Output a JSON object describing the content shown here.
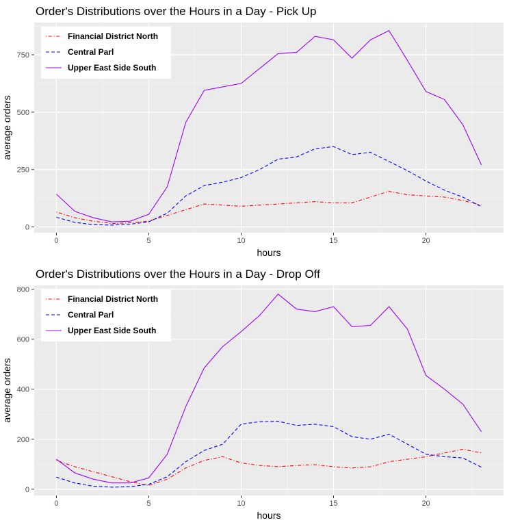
{
  "chart_data": [
    {
      "type": "line",
      "title": "Order's Distributions over the Hours in a Day - Pick Up",
      "xlabel": "hours",
      "ylabel": "average orders",
      "xlim": [
        -1.2,
        24.2
      ],
      "ylim": [
        -25,
        890
      ],
      "x_ticks": [
        0,
        5,
        10,
        15,
        20
      ],
      "y_ticks": [
        0,
        250,
        500,
        750
      ],
      "grid": true,
      "legend_position": "top-left",
      "x": [
        0,
        1,
        2,
        3,
        4,
        5,
        6,
        7,
        8,
        9,
        10,
        11,
        12,
        13,
        14,
        15,
        16,
        17,
        18,
        19,
        20,
        21,
        22,
        23
      ],
      "series": [
        {
          "name": "Financial District North",
          "color": "#ff0000",
          "dash": "dotdash",
          "values": [
            65,
            40,
            25,
            15,
            18,
            25,
            50,
            75,
            100,
            95,
            90,
            95,
            100,
            105,
            110,
            105,
            105,
            130,
            155,
            140,
            135,
            130,
            115,
            95
          ]
        },
        {
          "name": "Central Parl",
          "color": "#0000ff",
          "dash": "dashed",
          "values": [
            42,
            20,
            10,
            8,
            12,
            22,
            60,
            135,
            180,
            195,
            215,
            250,
            295,
            305,
            340,
            350,
            315,
            325,
            285,
            245,
            200,
            160,
            130,
            88
          ]
        },
        {
          "name": "Upper East Side South",
          "color": "#9b00ff",
          "dash": "solid",
          "values": [
            143,
            68,
            40,
            22,
            25,
            55,
            175,
            455,
            595,
            610,
            625,
            690,
            755,
            760,
            830,
            815,
            735,
            815,
            855,
            725,
            590,
            555,
            445,
            270
          ]
        }
      ]
    },
    {
      "type": "line",
      "title": "Order's Distributions over the Hours in a Day - Drop Off",
      "xlabel": "hours",
      "ylabel": "average orders",
      "xlim": [
        -1.2,
        24.2
      ],
      "ylim": [
        -25,
        815
      ],
      "x_ticks": [
        0,
        5,
        10,
        15,
        20
      ],
      "y_ticks": [
        0,
        200,
        400,
        600,
        800
      ],
      "grid": true,
      "legend_position": "top-left",
      "x": [
        0,
        1,
        2,
        3,
        4,
        5,
        6,
        7,
        8,
        9,
        10,
        11,
        12,
        13,
        14,
        15,
        16,
        17,
        18,
        19,
        20,
        21,
        22,
        23
      ],
      "series": [
        {
          "name": "Financial District North",
          "color": "#ff0000",
          "dash": "dotdash",
          "values": [
            115,
            90,
            70,
            50,
            30,
            15,
            40,
            85,
            115,
            130,
            105,
            95,
            90,
            95,
            98,
            90,
            85,
            90,
            110,
            120,
            130,
            145,
            160,
            145
          ]
        },
        {
          "name": "Central Parl",
          "color": "#0000ff",
          "dash": "dashed",
          "values": [
            48,
            25,
            12,
            8,
            10,
            20,
            50,
            110,
            155,
            180,
            260,
            270,
            272,
            255,
            260,
            250,
            210,
            200,
            220,
            180,
            140,
            130,
            125,
            88
          ]
        },
        {
          "name": "Upper East Side South",
          "color": "#9b00ff",
          "dash": "solid",
          "values": [
            120,
            65,
            40,
            25,
            25,
            45,
            140,
            330,
            485,
            570,
            630,
            695,
            780,
            720,
            710,
            730,
            650,
            655,
            730,
            640,
            455,
            400,
            340,
            230
          ]
        }
      ]
    }
  ]
}
